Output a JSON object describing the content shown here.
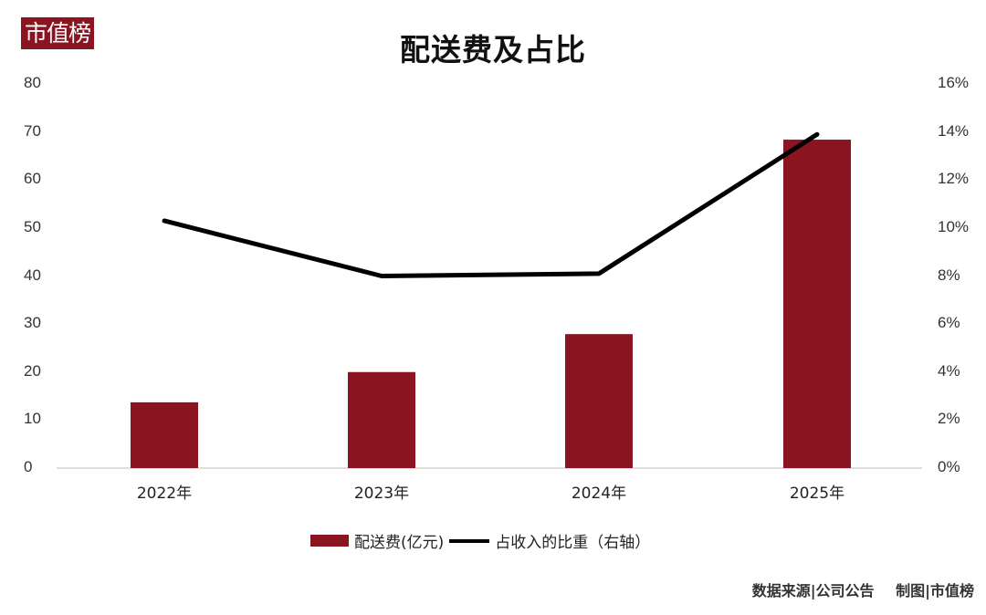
{
  "brand": {
    "logo_text": "市值榜",
    "color": "#8a1521"
  },
  "chart_data": {
    "type": "bar+line",
    "title": "配送费及占比",
    "categories": [
      "2022年",
      "2023年",
      "2024年",
      "2025年"
    ],
    "series": [
      {
        "name": "配送费(亿元)",
        "type": "bar",
        "axis": "left",
        "color": "#8a1521",
        "values": [
          13.7,
          20.0,
          27.9,
          68.4
        ]
      },
      {
        "name": "占收入的比重（右轴）",
        "type": "line",
        "axis": "right",
        "color": "#000000",
        "values": [
          10.3,
          8.0,
          8.1,
          13.9
        ],
        "unit": "%"
      }
    ],
    "left_axis": {
      "ylim": [
        0,
        80
      ],
      "ticks": [
        "0",
        "10",
        "20",
        "30",
        "40",
        "50",
        "60",
        "70",
        "80"
      ]
    },
    "right_axis": {
      "ylim": [
        0,
        16
      ],
      "ticks": [
        "0%",
        "2%",
        "4%",
        "6%",
        "8%",
        "10%",
        "12%",
        "14%",
        "16%"
      ]
    },
    "grid": false,
    "legend_position": "bottom"
  },
  "legend": {
    "bar_label": "配送费(亿元)",
    "line_label": "占收入的比重（右轴）"
  },
  "footer": {
    "source": "数据来源|公司公告",
    "credit": "制图|市值榜"
  }
}
